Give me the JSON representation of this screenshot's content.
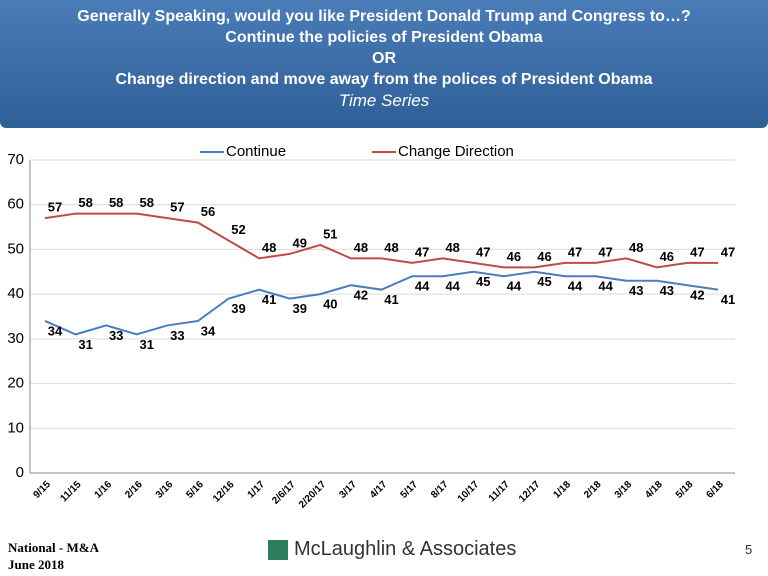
{
  "header": {
    "lines": [
      "Generally Speaking, would you like President Donald Trump and Congress to…?",
      "Continue the policies of President Obama",
      "OR",
      "Change direction and move away from the polices of President Obama"
    ],
    "subtitle": "Time Series"
  },
  "chart_data": {
    "type": "line",
    "categories": [
      "9/15",
      "11/15",
      "1/16",
      "2/16",
      "3/16",
      "5/16",
      "12/16",
      "1/17",
      "2/6/17",
      "2/20/17",
      "3/17",
      "4/17",
      "5/17",
      "8/17",
      "10/17",
      "11/17",
      "12/17",
      "1/18",
      "2/18",
      "3/18",
      "4/18",
      "5/18",
      "6/18"
    ],
    "series": [
      {
        "name": "Continue",
        "color": "#4a7ebb",
        "values": [
          34,
          31,
          33,
          31,
          33,
          34,
          39,
          41,
          39,
          40,
          42,
          41,
          44,
          44,
          45,
          44,
          45,
          44,
          44,
          43,
          43,
          42,
          41
        ]
      },
      {
        "name": "Change Direction",
        "color": "#be4b48",
        "values": [
          57,
          58,
          58,
          58,
          57,
          56,
          52,
          48,
          49,
          51,
          48,
          48,
          47,
          48,
          47,
          46,
          46,
          47,
          47,
          48,
          46,
          47,
          47
        ]
      }
    ],
    "ylim": [
      0,
      70
    ],
    "yticks": [
      0,
      10,
      20,
      30,
      40,
      50,
      60,
      70
    ],
    "grid": true,
    "legend": "top"
  },
  "footer": {
    "left": [
      "National - M&A",
      "June 2018"
    ],
    "logo": "McLaughlin & Associates",
    "page": "5"
  }
}
